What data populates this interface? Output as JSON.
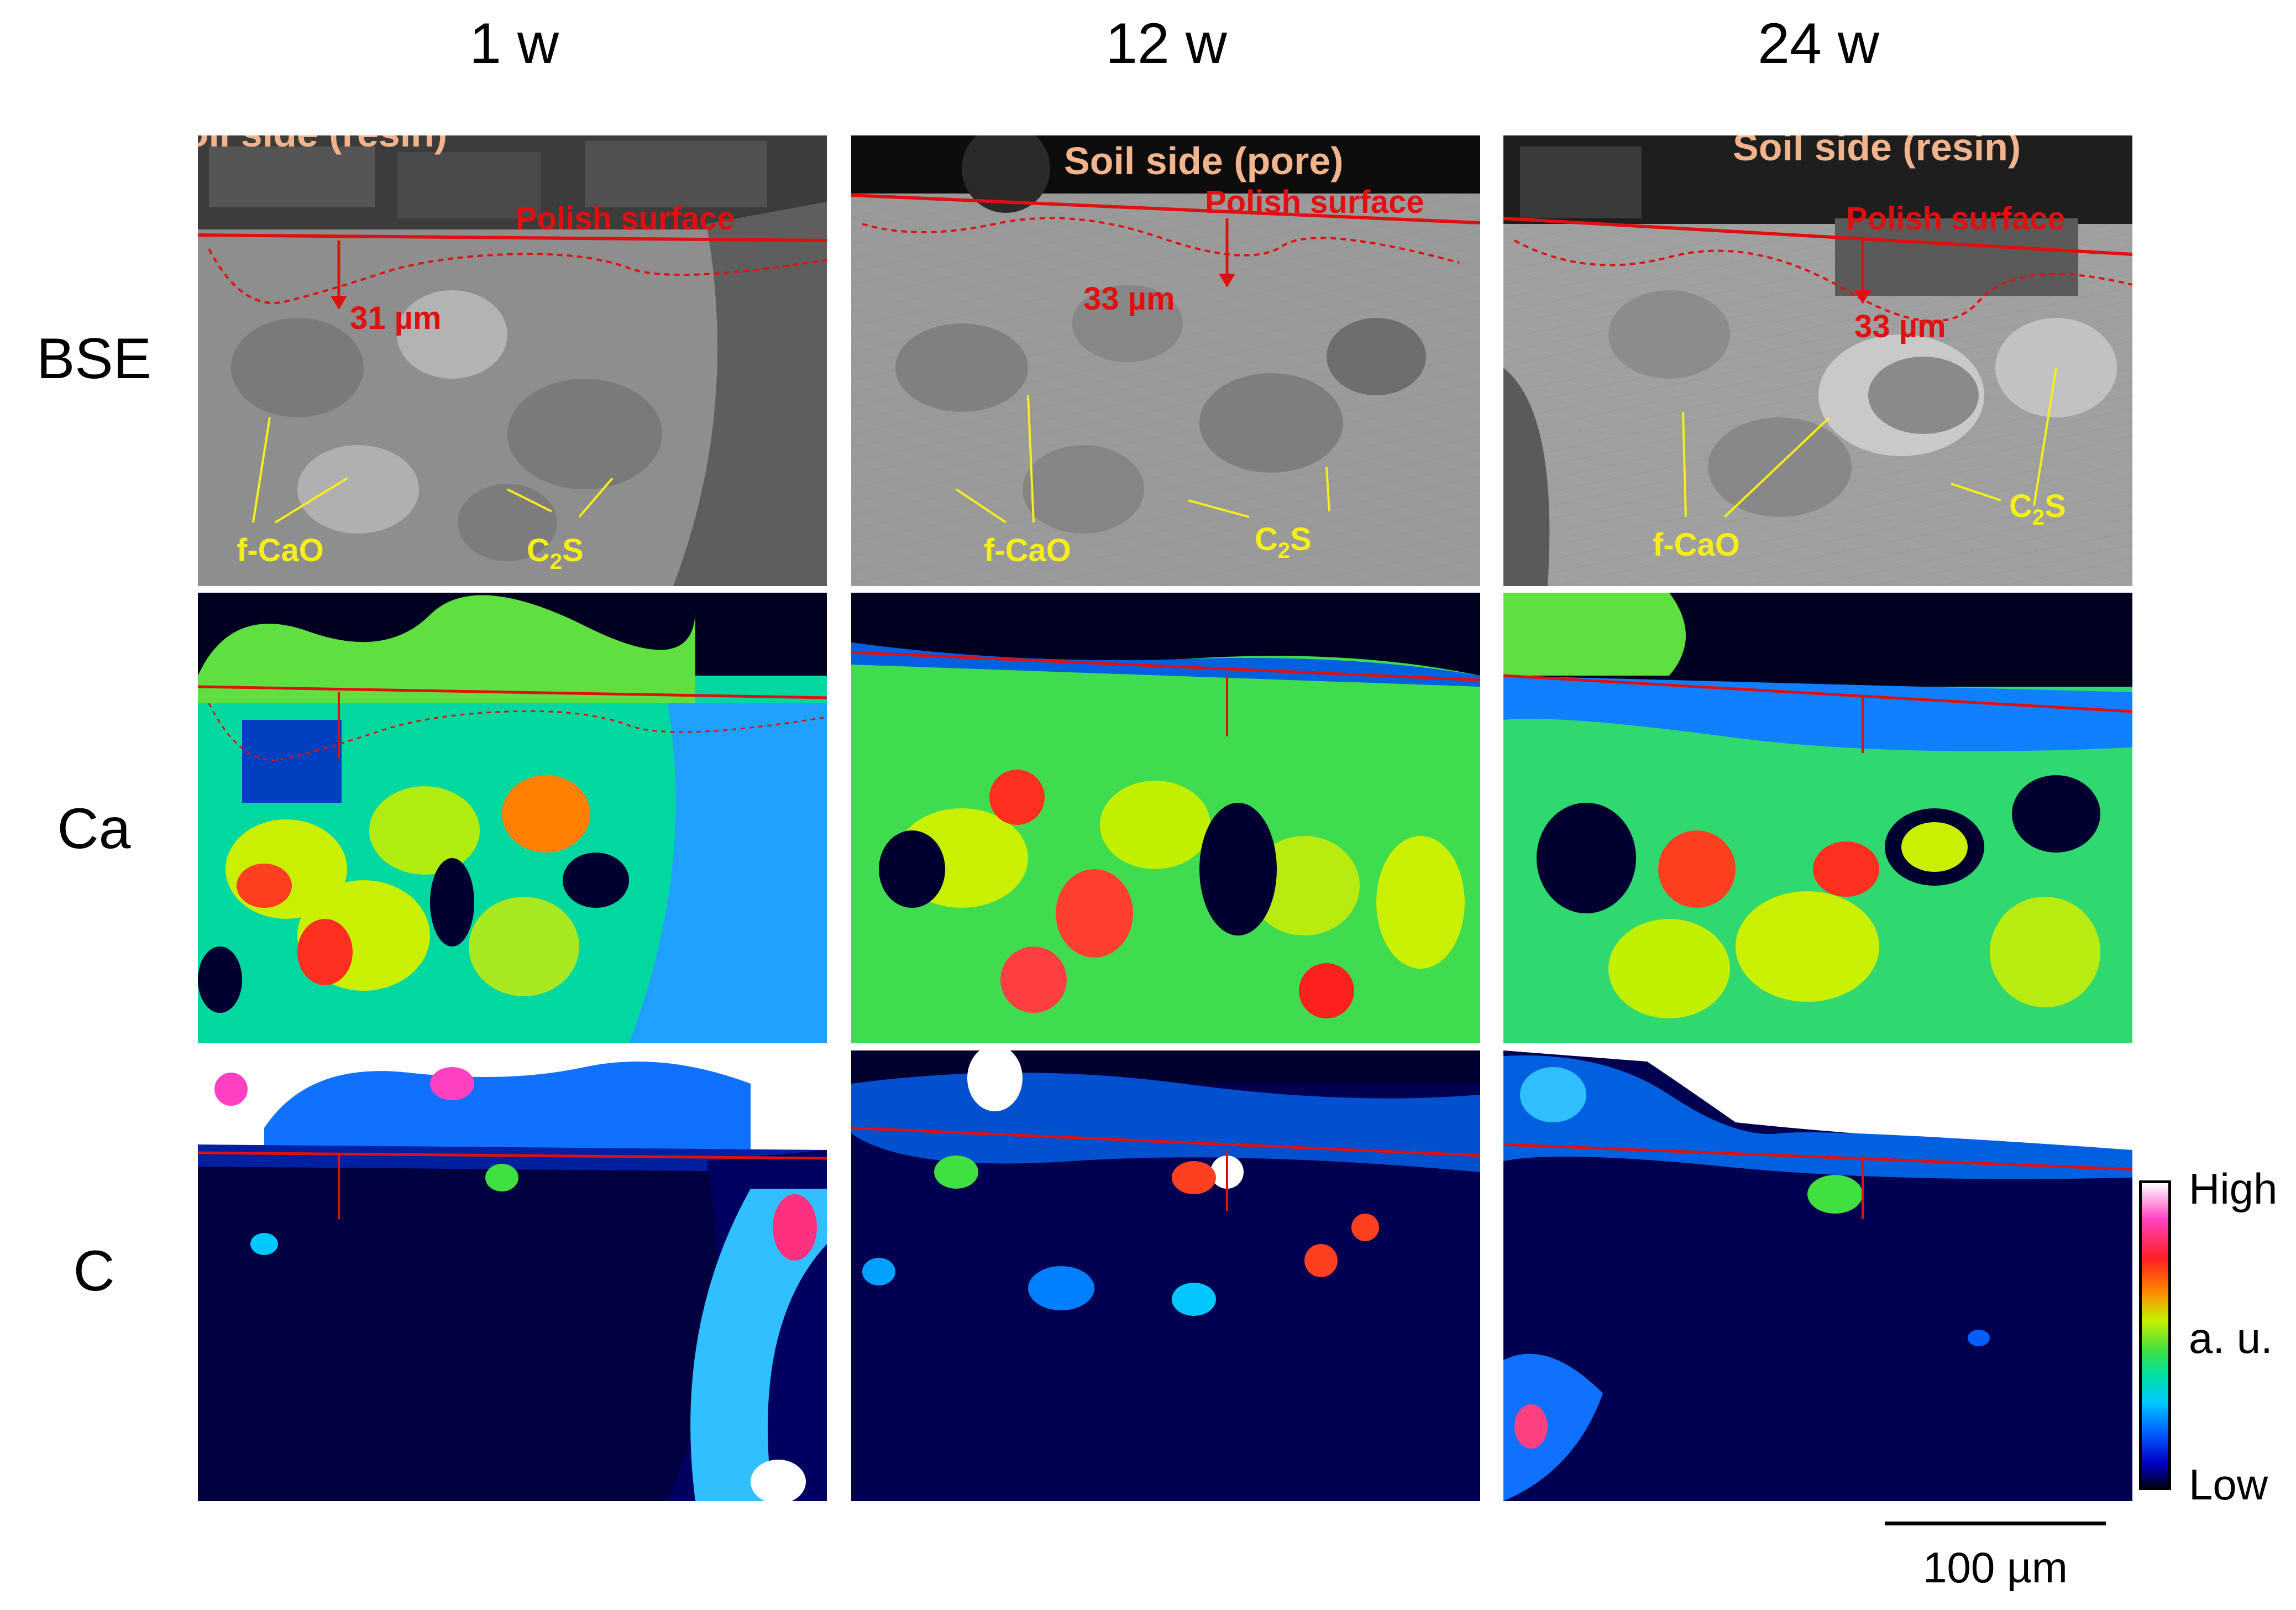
{
  "columns": [
    "1 w",
    "12 w",
    "24 w"
  ],
  "rows": [
    "BSE",
    "Ca",
    "C"
  ],
  "bse": [
    {
      "side_label": "Soil side (resin)",
      "polish_label": "Polish surface",
      "depth_label": "31 µm",
      "phase1": "f-CaO",
      "phase2_main": "C",
      "phase2_sub": "2",
      "phase2_tail": "S"
    },
    {
      "side_label": "Soil side (pore)",
      "polish_label": "Polish surface",
      "depth_label": "33 µm",
      "phase1": "f-CaO",
      "phase2_main": "C",
      "phase2_sub": "2",
      "phase2_tail": "S"
    },
    {
      "side_label": "Soil side (resin)",
      "polish_label": "Polish surface",
      "depth_label": "33 µm",
      "phase1": "f-CaO",
      "phase2_main": "C",
      "phase2_sub": "2",
      "phase2_tail": "S"
    }
  ],
  "legend": {
    "high": "High",
    "mid": "a. u.",
    "low": "Low"
  },
  "scale": {
    "label": "100 µm"
  },
  "colors": {
    "annotation_yellow": "#f6ee19",
    "annotation_red": "#e01010",
    "annotation_peach": "#f2b48c",
    "colormap": [
      "#000020",
      "#0000c8",
      "#0060ff",
      "#00c8ff",
      "#00e0a0",
      "#40e040",
      "#c8f000",
      "#ff8000",
      "#ff2020",
      "#ff40c0",
      "#ffffff"
    ]
  }
}
